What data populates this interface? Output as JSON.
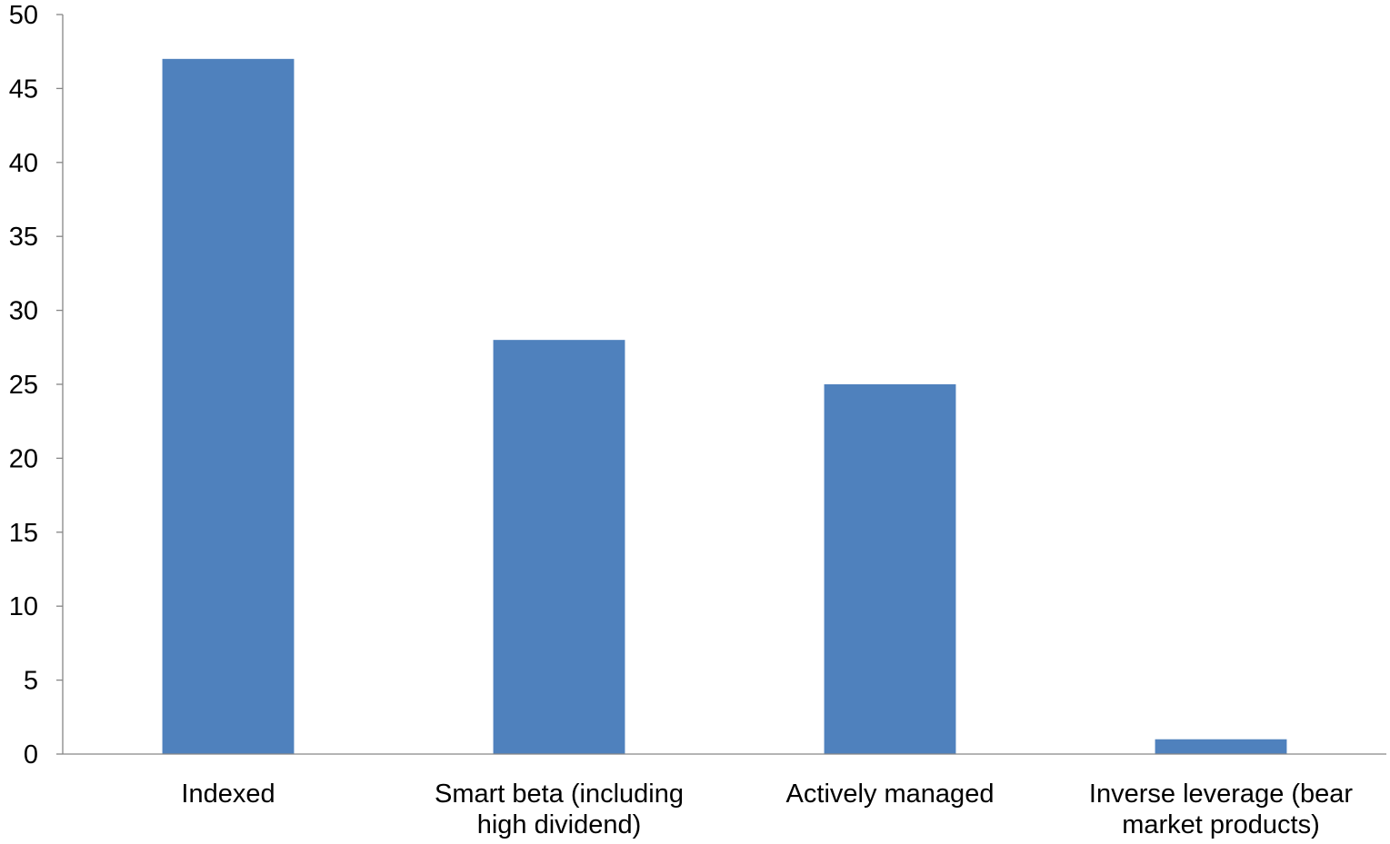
{
  "chart_data": {
    "type": "bar",
    "title": "",
    "xlabel": "",
    "ylabel": "",
    "ylim": [
      0,
      50
    ],
    "ytick_step": 5,
    "yticks": [
      "0",
      "5",
      "10",
      "15",
      "20",
      "25",
      "30",
      "35",
      "40",
      "45",
      "50"
    ],
    "grid": false,
    "legend": "none",
    "bar_color": "#4f81bd",
    "categories": [
      [
        "Indexed"
      ],
      [
        "Smart beta (including",
        "high dividend)"
      ],
      [
        "Actively managed"
      ],
      [
        "Inverse leverage (bear",
        "market products)"
      ]
    ],
    "values": [
      47,
      28,
      25,
      1
    ]
  }
}
